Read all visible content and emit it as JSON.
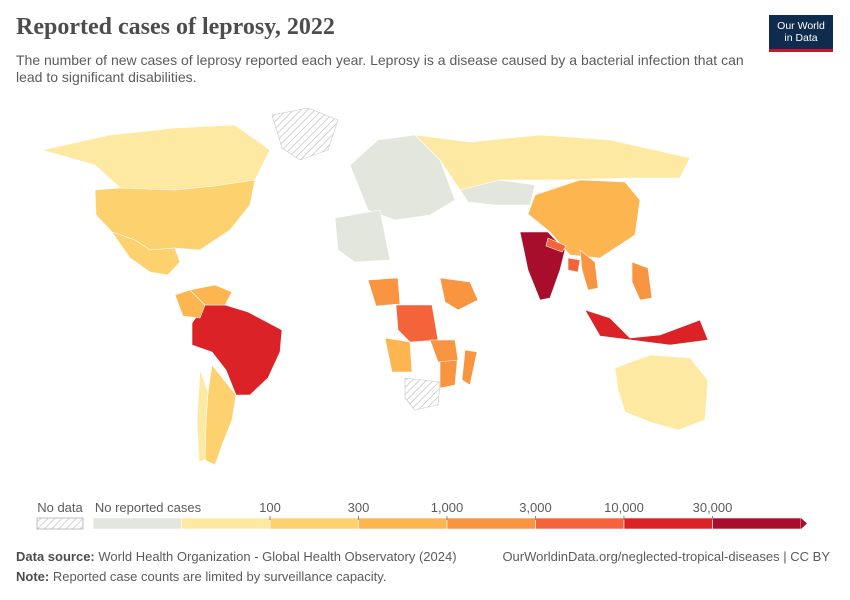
{
  "header": {
    "title": "Reported cases of leprosy, 2022",
    "subtitle": "The number of new cases of leprosy reported each year. Leprosy is a disease caused by a bacterial infection that can lead to significant disabilities.",
    "logo_line1": "Our World",
    "logo_line2": "in Data",
    "logo_color": "#0f2b4d",
    "logo_accent": "#c5182c"
  },
  "legend": {
    "no_data_label": "No data",
    "no_reported_label": "No reported cases",
    "thresholds": [
      "100",
      "300",
      "1,000",
      "3,000",
      "10,000",
      "30,000"
    ],
    "colors": [
      "#e2e6dc",
      "#fee9a3",
      "#fdd26e",
      "#fdb550",
      "#f99441",
      "#f4633a",
      "#db2227",
      "#a90d2c"
    ]
  },
  "footer": {
    "source_label": "Data source:",
    "source_text": "World Health Organization - Global Health Observatory (2024)",
    "url": "OurWorldinData.org/neglected-tropical-diseases | CC BY",
    "note_label": "Note:",
    "note_text": "Reported case counts are limited by surveillance capacity."
  },
  "chart_data": {
    "type": "choropleth",
    "year": "2022",
    "unit": "reported cases",
    "bins": [
      "No reported cases",
      "0-100",
      "100-300",
      "300-1,000",
      "1,000-3,000",
      "3,000-10,000",
      "10,000-30,000",
      ">30,000"
    ],
    "regions": [
      {
        "name": "Canada",
        "bin": 1
      },
      {
        "name": "United States",
        "bin": 2
      },
      {
        "name": "Mexico",
        "bin": 2
      },
      {
        "name": "Greenland",
        "bin": -1
      },
      {
        "name": "Brazil",
        "bin": 6
      },
      {
        "name": "Colombia",
        "bin": 3
      },
      {
        "name": "Venezuela",
        "bin": 3
      },
      {
        "name": "Argentina",
        "bin": 2
      },
      {
        "name": "Chile",
        "bin": 1
      },
      {
        "name": "Europe",
        "bin": 0
      },
      {
        "name": "Russia",
        "bin": 1
      },
      {
        "name": "Kazakhstan",
        "bin": 0
      },
      {
        "name": "China",
        "bin": 3
      },
      {
        "name": "India",
        "bin": 7
      },
      {
        "name": "Nepal",
        "bin": 5
      },
      {
        "name": "Bangladesh",
        "bin": 5
      },
      {
        "name": "Myanmar",
        "bin": 4
      },
      {
        "name": "Indonesia",
        "bin": 6
      },
      {
        "name": "Philippines",
        "bin": 4
      },
      {
        "name": "Australia",
        "bin": 1
      },
      {
        "name": "Algeria",
        "bin": 0
      },
      {
        "name": "Nigeria",
        "bin": 4
      },
      {
        "name": "DR Congo",
        "bin": 5
      },
      {
        "name": "Ethiopia",
        "bin": 4
      },
      {
        "name": "Mozambique",
        "bin": 4
      },
      {
        "name": "Madagascar",
        "bin": 4
      },
      {
        "name": "Tanzania",
        "bin": 4
      },
      {
        "name": "Angola",
        "bin": 3
      },
      {
        "name": "South Africa",
        "bin": -1
      }
    ]
  }
}
